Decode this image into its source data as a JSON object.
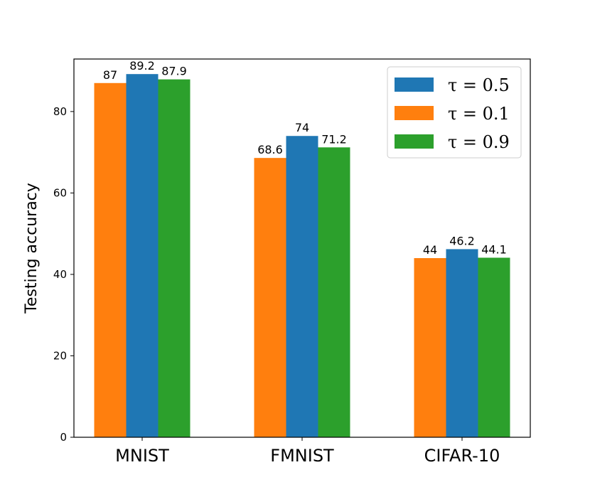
{
  "chart_data": {
    "type": "bar",
    "categories": [
      "MNIST",
      "FMNIST",
      "CIFAR-10"
    ],
    "series": [
      {
        "name": "τ = 0.1",
        "values": [
          87,
          68.6,
          44
        ],
        "color": "#ff7f0e",
        "labels": [
          "87",
          "68.6",
          "44"
        ]
      },
      {
        "name": "τ = 0.5",
        "values": [
          89.2,
          74,
          46.2
        ],
        "color": "#1f77b4",
        "labels": [
          "89.2",
          "74",
          "46.2"
        ]
      },
      {
        "name": "τ = 0.9",
        "values": [
          87.9,
          71.2,
          44.1
        ],
        "color": "#2ca02c",
        "labels": [
          "87.9",
          "71.2",
          "44.1"
        ]
      }
    ],
    "legend_order": [
      1,
      0,
      2
    ],
    "title": "",
    "xlabel": "",
    "ylabel": "Testing accuracy",
    "ylim": [
      0,
      92.9
    ],
    "yticks": [
      0,
      20,
      40,
      60,
      80
    ],
    "ytick_labels": [
      "0",
      "20",
      "40",
      "60",
      "80"
    ],
    "grid": false,
    "legend_position": "top-right"
  }
}
